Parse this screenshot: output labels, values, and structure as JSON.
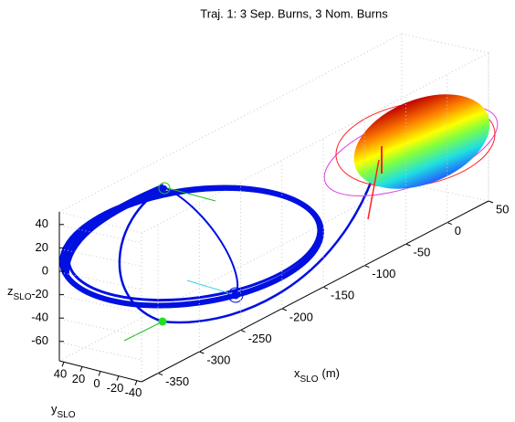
{
  "chart_data": {
    "type": "line3d",
    "title": "Traj. 1: 3 Sep. Burns, 3 Nom. Burns",
    "xlabel": {
      "main": "x",
      "sub": "SLO",
      "unit": "(m)"
    },
    "ylabel": {
      "main": "y",
      "sub": "SLO"
    },
    "zlabel": {
      "main": "z",
      "sub": "SLO"
    },
    "xticks": [
      -350,
      -300,
      -250,
      -200,
      -150,
      -100,
      -50,
      0,
      50
    ],
    "yticks": [
      40,
      20,
      0,
      -20,
      -40
    ],
    "zticks": [
      40,
      20,
      0,
      -20,
      -40,
      -60
    ],
    "grid": true
  }
}
